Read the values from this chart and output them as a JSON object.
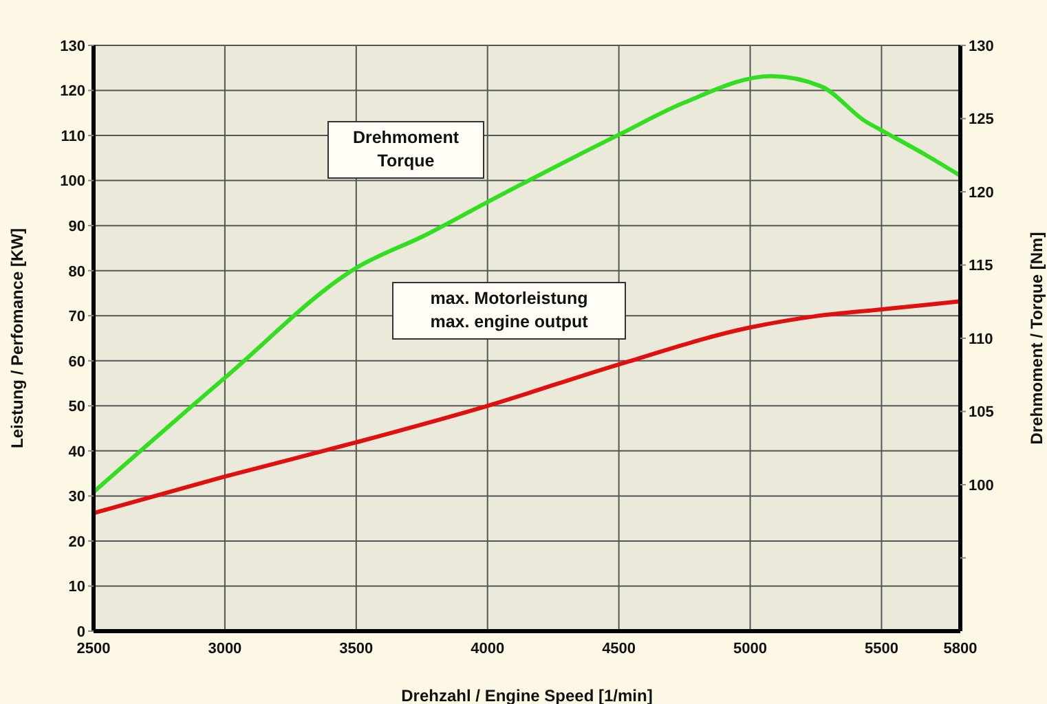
{
  "chart_data": {
    "type": "line",
    "xlabel": "Drehzahl / Engine Speed [1/min]",
    "ylabel": "Leistung / Perfomance [KW]",
    "y2label": "Drehmoment / Torque [Nm]",
    "xlim": [
      2500,
      5800
    ],
    "xticks": [
      2500,
      3000,
      3500,
      4000,
      4500,
      5000,
      5500,
      5800
    ],
    "ylim": [
      0,
      130
    ],
    "yticks": [
      0,
      10,
      20,
      30,
      40,
      50,
      60,
      70,
      80,
      90,
      100,
      110,
      120,
      130
    ],
    "y2lim": [
      90,
      130
    ],
    "y2ticks": [
      {
        "value": 95,
        "label": null
      },
      100,
      105,
      110,
      115,
      120,
      125,
      130
    ],
    "grid": true,
    "marker": "none",
    "line_style": "solid",
    "series": [
      {
        "name": "Drehmoment\nTorque",
        "color": "#33dd22",
        "axis": "y2",
        "x": [
          2500,
          3000,
          3500,
          3770,
          4000,
          4500,
          4750,
          5080,
          5270,
          5440,
          5500,
          5670,
          5800
        ],
        "values": [
          99.5,
          107.3,
          114.8,
          117.1,
          119.3,
          123.9,
          126.1,
          127.9,
          127.2,
          124.8,
          124.2,
          122.5,
          121.1
        ]
      },
      {
        "name": "max. Motorleistung\nmax. engine output",
        "color": "#e01010",
        "x": [
          2500,
          3000,
          3500,
          4000,
          4500,
          5000,
          5250,
          5500,
          5800
        ],
        "values": [
          26.2,
          34.3,
          41.9,
          50,
          59.2,
          67.4,
          69.9,
          71.4,
          73.2
        ]
      }
    ]
  }
}
